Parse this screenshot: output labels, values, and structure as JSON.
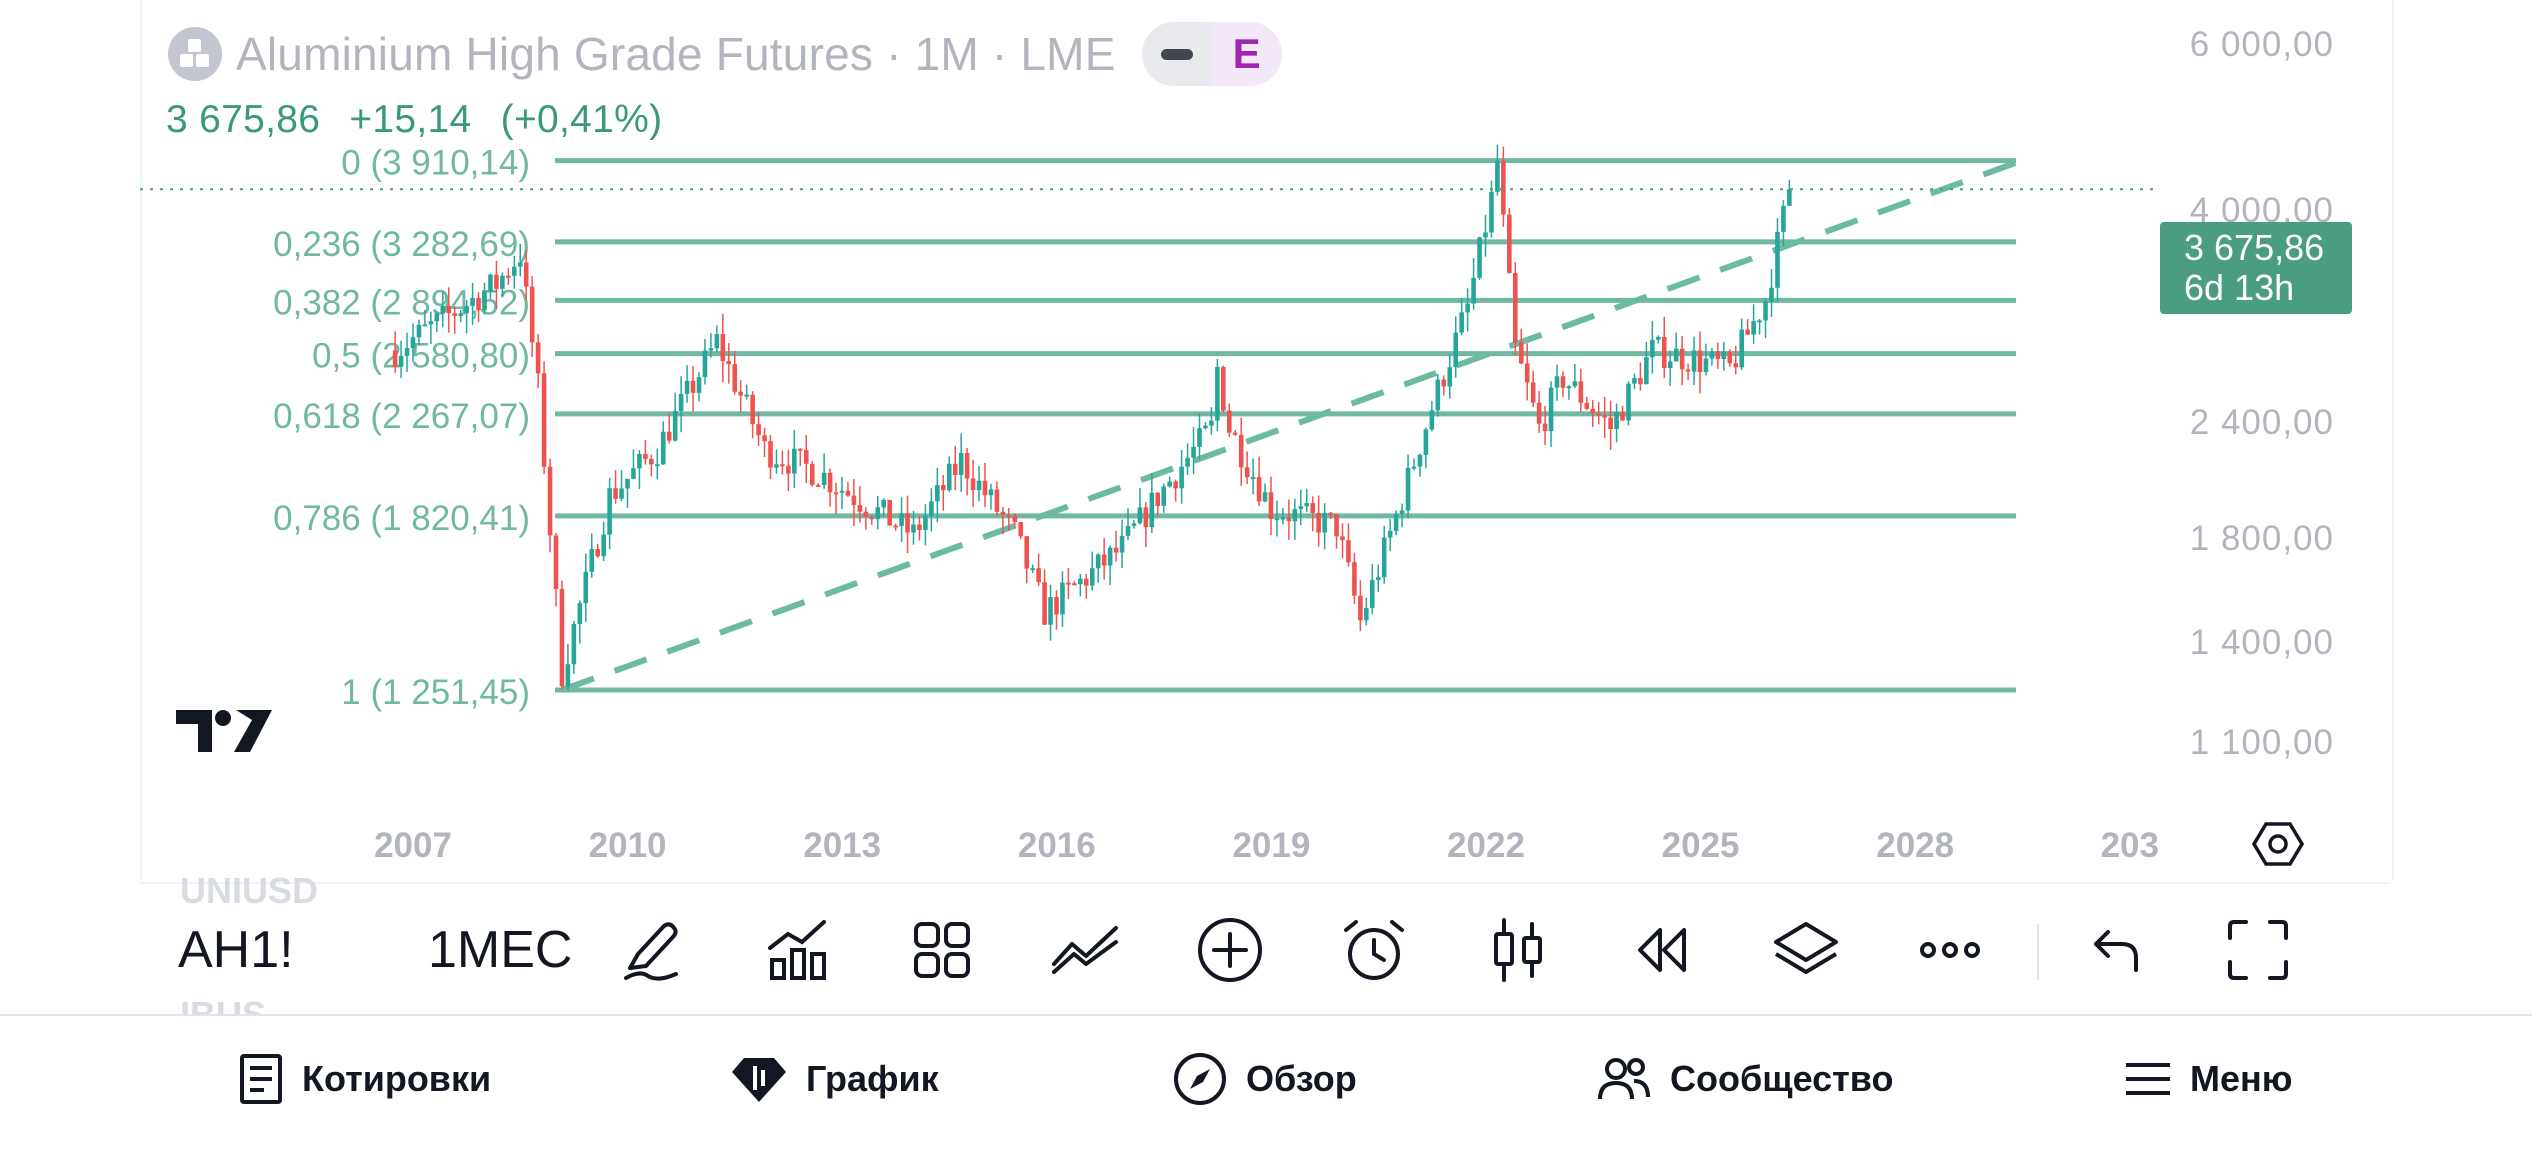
{
  "header": {
    "title": "Aluminium High Grade Futures",
    "sep": "·",
    "interval": "1M",
    "exchange": "LME",
    "earnings_badge": "E"
  },
  "quote": {
    "price": "3 675,86",
    "change": "+15,14",
    "change_pct": "(+0,41%)"
  },
  "price_badge": {
    "price": "3 675,86",
    "countdown": "6d 13h"
  },
  "price_axis_labels": [
    "6 000,00",
    "4 000,00",
    "2 400,00",
    "1 800,00",
    "1 400,00",
    "1 100,00"
  ],
  "time_axis_labels": [
    "2007",
    "2010",
    "2013",
    "2016",
    "2019",
    "2022",
    "2025",
    "2028",
    "203"
  ],
  "fib_labels": [
    "0 (3 910,14)",
    "0,236 (3 282,69)",
    "0,382 (2 894,52)",
    "0,5 (2 580,80)",
    "0,618 (2 267,07)",
    "0,786 (1 820,41)",
    "1 (1 251,45)"
  ],
  "colors": {
    "up": "#26a69a",
    "down": "#ef5350",
    "fib": "#70b8a4",
    "trend": "#6bbba4",
    "badge": "#4a9d7f"
  },
  "chart_data": {
    "type": "candlestick",
    "symbol": "Aluminium High Grade Futures",
    "interval": "1M",
    "y_scale": "log",
    "last_price": 3675.86,
    "fibonacci_retracement": [
      {
        "level": 0,
        "price": 3910.14
      },
      {
        "level": 0.236,
        "price": 3282.69
      },
      {
        "level": 0.382,
        "price": 2894.52
      },
      {
        "level": 0.5,
        "price": 2580.8
      },
      {
        "level": 0.618,
        "price": 2267.07
      },
      {
        "level": 0.786,
        "price": 1820.41
      },
      {
        "level": 1,
        "price": 1251.45
      }
    ],
    "trend_line": {
      "from": {
        "date": "2009-02",
        "price": 1251.45
      },
      "to": {
        "date": "2029-07",
        "price": 3910
      }
    },
    "approx_price_path": [
      [
        "2006-10",
        2600
      ],
      [
        "2007-07",
        2800
      ],
      [
        "2008-03",
        3000
      ],
      [
        "2008-07",
        3200
      ],
      [
        "2008-10",
        2400
      ],
      [
        "2009-02",
        1300
      ],
      [
        "2009-10",
        1900
      ],
      [
        "2010-06",
        2100
      ],
      [
        "2011-04",
        2650
      ],
      [
        "2011-12",
        2100
      ],
      [
        "2012-09",
        2000
      ],
      [
        "2013-06",
        1850
      ],
      [
        "2014-01",
        1750
      ],
      [
        "2014-09",
        2050
      ],
      [
        "2015-06",
        1750
      ],
      [
        "2015-11",
        1480
      ],
      [
        "2016-12",
        1700
      ],
      [
        "2017-06",
        1900
      ],
      [
        "2018-03",
        2200
      ],
      [
        "2018-04",
        2500
      ],
      [
        "2018-06",
        2200
      ],
      [
        "2019-01",
        1850
      ],
      [
        "2019-12",
        1780
      ],
      [
        "2020-04",
        1450
      ],
      [
        "2020-09",
        1750
      ],
      [
        "2021-04",
        2300
      ],
      [
        "2021-10",
        2850
      ],
      [
        "2022-02",
        3600
      ],
      [
        "2022-03",
        3900
      ],
      [
        "2022-06",
        2600
      ],
      [
        "2022-10",
        2200
      ],
      [
        "2023-02",
        2450
      ],
      [
        "2023-10",
        2200
      ],
      [
        "2024-05",
        2600
      ],
      [
        "2024-12",
        2550
      ],
      [
        "2025-06",
        2500
      ],
      [
        "2025-12",
        2900
      ],
      [
        "2026-04",
        3675.86
      ]
    ]
  },
  "toolbar": {
    "ghost_top": "UNIUSD",
    "ghost_bottom": "IBUS",
    "symbol": "AH1!",
    "interval": "1МЕС"
  },
  "nav": {
    "quotes": "Котировки",
    "chart": "График",
    "explore": "Обзор",
    "community": "Сообщество",
    "menu": "Меню"
  }
}
